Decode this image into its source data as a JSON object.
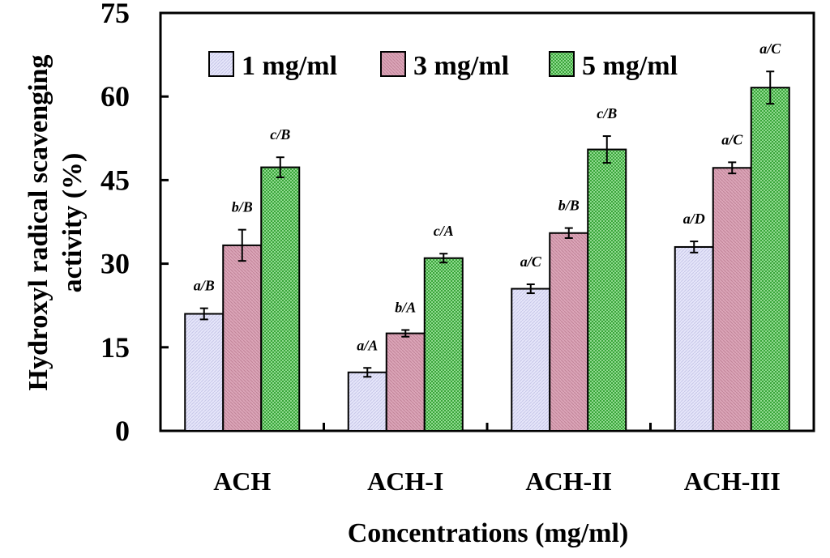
{
  "chart_data": {
    "type": "bar",
    "title": "",
    "xlabel": "Concentrations (mg/ml)",
    "ylabel_lines": [
      "Hydroxyl radical scavenging",
      "activity (%)"
    ],
    "categories": [
      "ACH",
      "ACH-I",
      "ACH-II",
      "ACH-III"
    ],
    "ylim": [
      0,
      75
    ],
    "yticks": [
      0,
      15,
      30,
      45,
      60,
      75
    ],
    "legend_position": "top",
    "grid": false,
    "series": [
      {
        "name": "1 mg/ml",
        "color": "#dcdcf4",
        "values": [
          21,
          10.5,
          25.5,
          33
        ],
        "errors": [
          1.0,
          0.8,
          0.8,
          1.0
        ],
        "annotations": [
          "a/B",
          "a/A",
          "a/C",
          "a/D"
        ]
      },
      {
        "name": "3 mg/ml",
        "color": "#d49aaf",
        "values": [
          33.3,
          17.5,
          35.5,
          47.2
        ],
        "errors": [
          2.8,
          0.6,
          0.9,
          1.0
        ],
        "annotations": [
          "b/B",
          "b/A",
          "b/B",
          "a/C"
        ]
      },
      {
        "name": "5 mg/ml",
        "color": "#48b048",
        "values": [
          47.3,
          31,
          50.5,
          61.6
        ],
        "errors": [
          1.8,
          0.8,
          2.4,
          2.9
        ],
        "annotations": [
          "c/B",
          "c/A",
          "c/B",
          "a/C"
        ]
      }
    ]
  }
}
